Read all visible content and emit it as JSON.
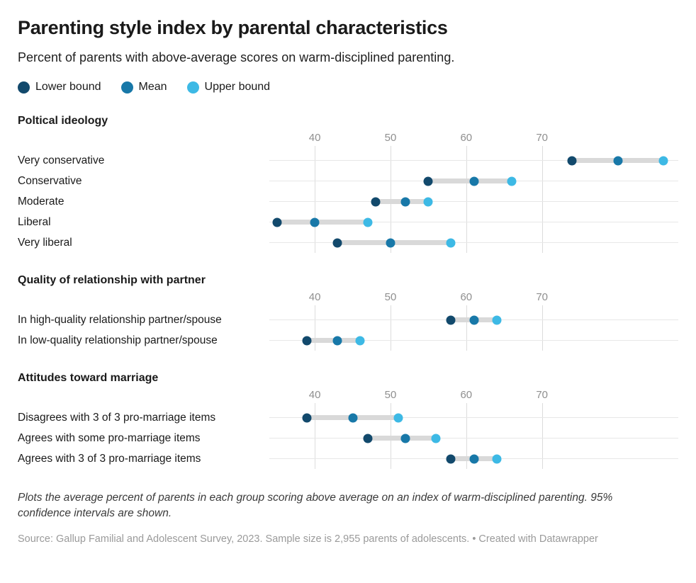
{
  "header": {
    "title": "Parenting style index by parental characteristics",
    "subtitle": "Percent of parents with above-average scores on warm-disciplined parenting."
  },
  "legend": [
    {
      "label": "Lower bound",
      "color": "#12496c"
    },
    {
      "label": "Mean",
      "color": "#1878a8"
    },
    {
      "label": "Upper bound",
      "color": "#3db9e5"
    }
  ],
  "chart_data": {
    "type": "scatter",
    "subtype": "dot-range-plot",
    "title": "Parenting style index by parental characteristics",
    "subtitle": "Percent of parents with above-average scores on warm-disciplined parenting.",
    "series_names": [
      "Lower bound",
      "Mean",
      "Upper bound"
    ],
    "axis": {
      "min": 34,
      "max": 88,
      "ticks": [
        40,
        50,
        60,
        70
      ]
    },
    "grid": "vertical",
    "colors": {
      "lower": "#12496c",
      "mean": "#1878a8",
      "upper": "#3db9e5",
      "range_bar": "#d9d9d9",
      "gridline": "#dcdcdc"
    },
    "sections": [
      {
        "title": "Poltical ideology",
        "rows": [
          {
            "label": "Very conservative",
            "lower": 74,
            "mean": 80,
            "upper": 86
          },
          {
            "label": "Conservative",
            "lower": 55,
            "mean": 61,
            "upper": 66
          },
          {
            "label": "Moderate",
            "lower": 48,
            "mean": 52,
            "upper": 55
          },
          {
            "label": "Liberal",
            "lower": 35,
            "mean": 40,
            "upper": 47
          },
          {
            "label": "Very liberal",
            "lower": 43,
            "mean": 50,
            "upper": 58
          }
        ]
      },
      {
        "title": "Quality of relationship with partner",
        "rows": [
          {
            "label": "In high-quality relationship partner/spouse",
            "lower": 58,
            "mean": 61,
            "upper": 64
          },
          {
            "label": "In low-quality relationship partner/spouse",
            "lower": 39,
            "mean": 43,
            "upper": 46
          }
        ]
      },
      {
        "title": "Attitudes toward marriage",
        "rows": [
          {
            "label": "Disagrees with 3 of 3 pro-marriage items",
            "lower": 39,
            "mean": 45,
            "upper": 51
          },
          {
            "label": "Agrees with some pro-marriage items",
            "lower": 47,
            "mean": 52,
            "upper": 56
          },
          {
            "label": "Agrees with 3 of 3 pro-marriage items",
            "lower": 58,
            "mean": 61,
            "upper": 64
          }
        ]
      }
    ]
  },
  "footer": {
    "note": "Plots the average percent of parents in each group scoring above average on an index of warm-disciplined parenting. 95% confidence intervals are shown.",
    "source": "Source: Gallup Familial and Adolescent Survey, 2023. Sample size is 2,955 parents of adolescents. • Created with Datawrapper"
  }
}
